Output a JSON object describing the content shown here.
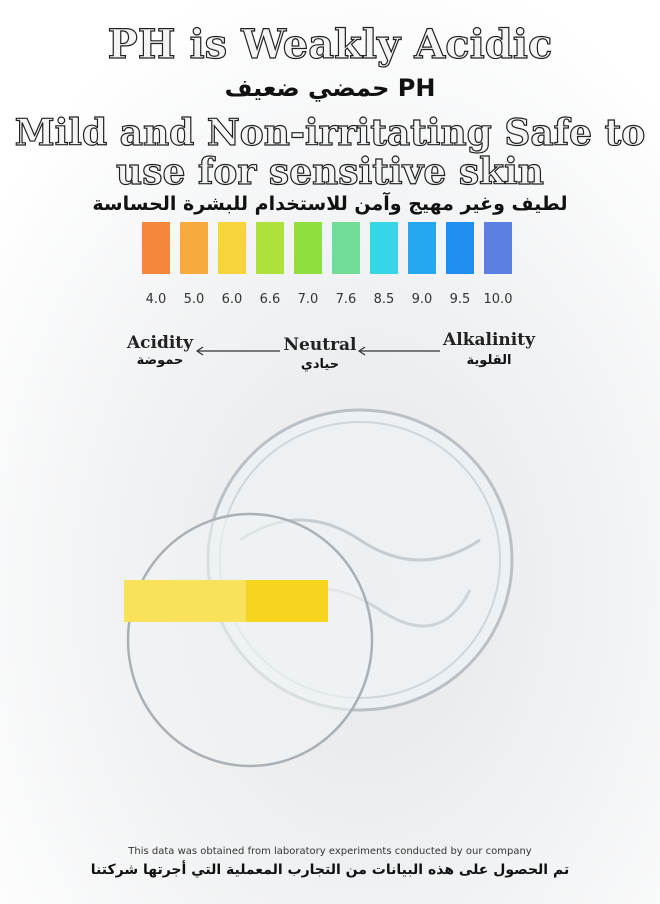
{
  "header": {
    "title": "PH is Weakly Acidic",
    "subtitle_ar": "PH حمضي ضعيف",
    "tagline_lines": [
      "Mild and Non-irritating Safe to",
      "use for sensitive skin"
    ],
    "tagline_ar": "لطيف وغير مهيج وآمن للاستخدام للبشرة الحساسة"
  },
  "scale": {
    "swatches": [
      {
        "label": "4.0",
        "color": "#f4873c"
      },
      {
        "label": "5.0",
        "color": "#f7aa3e"
      },
      {
        "label": "6.0",
        "color": "#f8d43c"
      },
      {
        "label": "6.6",
        "color": "#aee13c"
      },
      {
        "label": "7.0",
        "color": "#8fdf3e"
      },
      {
        "label": "7.6",
        "color": "#70dc98"
      },
      {
        "label": "8.5",
        "color": "#36d6e8"
      },
      {
        "label": "9.0",
        "color": "#25a8f0"
      },
      {
        "label": "9.5",
        "color": "#1f8ef0"
      },
      {
        "label": "10.0",
        "color": "#5b80e2"
      }
    ]
  },
  "legend": [
    {
      "en": "Acidity",
      "ar": "حموضة"
    },
    {
      "en": "Neutral",
      "ar": "حيادي"
    },
    {
      "en": "Alkalinity",
      "ar": "القلوية"
    }
  ],
  "footer": {
    "note": "This data was obtained from laboratory experiments conducted by our company",
    "note_ar": "تم الحصول على هذه البيانات من التجارب المعملية التي أجرتها شركتنا"
  }
}
